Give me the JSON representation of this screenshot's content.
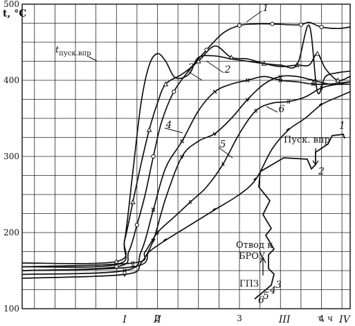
{
  "chart_data": {
    "type": "line",
    "title": "",
    "ylabel": "t, °C",
    "xlabel": "τ, ч",
    "ylim": [
      100,
      500
    ],
    "xlim": [
      0.35,
      4.35
    ],
    "grid": true,
    "y_ticks": [
      100,
      200,
      300,
      400,
      500
    ],
    "x_ticks": [
      2,
      3,
      4
    ],
    "phase_markers": [
      {
        "label": "I",
        "x": 1.6
      },
      {
        "label": "II",
        "x": 2.0
      },
      {
        "label": "III",
        "x": 3.55
      },
      {
        "label": "IV",
        "x": 4.35
      }
    ],
    "series": [
      {
        "name": "1",
        "marker": "circle",
        "points": [
          [
            0.35,
            150
          ],
          [
            1.5,
            155
          ],
          [
            1.65,
            175
          ],
          [
            1.75,
            210
          ],
          [
            1.85,
            250
          ],
          [
            1.95,
            300
          ],
          [
            2.05,
            345
          ],
          [
            2.2,
            385
          ],
          [
            2.4,
            415
          ],
          [
            2.6,
            440
          ],
          [
            2.8,
            462
          ],
          [
            3.0,
            472
          ],
          [
            3.2,
            474
          ],
          [
            3.4,
            474
          ],
          [
            3.6,
            473
          ],
          [
            3.75,
            473
          ],
          [
            3.85,
            476
          ],
          [
            4.0,
            470
          ],
          [
            4.2,
            468
          ],
          [
            4.35,
            470
          ]
        ]
      },
      {
        "name": "2",
        "marker": "triangle",
        "points": [
          [
            0.35,
            160
          ],
          [
            1.5,
            162
          ],
          [
            1.6,
            190
          ],
          [
            1.7,
            240
          ],
          [
            1.8,
            290
          ],
          [
            1.9,
            335
          ],
          [
            2.0,
            370
          ],
          [
            2.1,
            395
          ],
          [
            2.3,
            408
          ],
          [
            2.5,
            425
          ],
          [
            2.7,
            445
          ],
          [
            2.9,
            430
          ],
          [
            3.1,
            428
          ],
          [
            3.3,
            422
          ],
          [
            3.5,
            418
          ],
          [
            3.7,
            420
          ],
          [
            3.85,
            420
          ],
          [
            3.95,
            435
          ],
          [
            4.05,
            415
          ],
          [
            4.2,
            400
          ],
          [
            4.35,
            405
          ]
        ]
      },
      {
        "name": "3",
        "marker": "cross",
        "points": [
          [
            0.35,
            145
          ],
          [
            1.6,
            150
          ],
          [
            1.8,
            175
          ],
          [
            1.95,
            230
          ],
          [
            2.1,
            285
          ],
          [
            2.3,
            320
          ],
          [
            2.5,
            360
          ],
          [
            2.7,
            385
          ],
          [
            2.9,
            395
          ],
          [
            3.1,
            400
          ],
          [
            3.3,
            405
          ],
          [
            3.5,
            400
          ],
          [
            3.7,
            398
          ],
          [
            3.9,
            395
          ],
          [
            4.1,
            395
          ],
          [
            4.35,
            398
          ]
        ]
      },
      {
        "name": "4",
        "marker": "v",
        "points": [
          [
            0.35,
            140
          ],
          [
            1.6,
            145
          ],
          [
            1.8,
            160
          ],
          [
            1.95,
            190
          ],
          [
            2.1,
            245
          ],
          [
            2.3,
            300
          ],
          [
            2.5,
            320
          ],
          [
            2.7,
            330
          ],
          [
            2.9,
            350
          ],
          [
            3.1,
            375
          ],
          [
            3.3,
            395
          ],
          [
            3.5,
            405
          ],
          [
            3.7,
            405
          ],
          [
            3.9,
            400
          ],
          [
            4.1,
            395
          ],
          [
            4.35,
            395
          ]
        ]
      },
      {
        "name": "5",
        "marker": "tick",
        "points": [
          [
            0.35,
            150
          ],
          [
            1.7,
            155
          ],
          [
            1.9,
            175
          ],
          [
            2.1,
            190
          ],
          [
            2.4,
            210
          ],
          [
            2.7,
            230
          ],
          [
            3.0,
            250
          ],
          [
            3.2,
            270
          ],
          [
            3.4,
            310
          ],
          [
            3.6,
            335
          ],
          [
            3.8,
            350
          ],
          [
            4.0,
            368
          ],
          [
            4.2,
            378
          ],
          [
            4.35,
            385
          ]
        ]
      },
      {
        "name": "6",
        "marker": "bar",
        "points": [
          [
            0.35,
            155
          ],
          [
            1.7,
            160
          ],
          [
            1.85,
            175
          ],
          [
            2.0,
            200
          ],
          [
            2.2,
            220
          ],
          [
            2.4,
            240
          ],
          [
            2.6,
            260
          ],
          [
            2.8,
            290
          ],
          [
            3.0,
            330
          ],
          [
            3.2,
            360
          ],
          [
            3.4,
            370
          ],
          [
            3.6,
            372
          ],
          [
            3.8,
            378
          ],
          [
            4.0,
            390
          ],
          [
            4.2,
            395
          ],
          [
            4.35,
            398
          ]
        ]
      },
      {
        "name": "t пуск.впр",
        "marker": "none",
        "points": [
          [
            0.35,
            155
          ],
          [
            1.5,
            158
          ],
          [
            1.6,
            190
          ],
          [
            1.7,
            280
          ],
          [
            1.8,
            370
          ],
          [
            1.9,
            420
          ],
          [
            2.0,
            435
          ],
          [
            2.1,
            425
          ],
          [
            2.2,
            405
          ],
          [
            2.3,
            403
          ],
          [
            2.4,
            410
          ],
          [
            2.5,
            430
          ],
          [
            2.7,
            432
          ],
          [
            2.9,
            428
          ],
          [
            3.1,
            425
          ],
          [
            3.3,
            422
          ],
          [
            3.5,
            420
          ],
          [
            3.7,
            420
          ],
          [
            3.85,
            472
          ],
          [
            3.95,
            385
          ],
          [
            4.05,
            405
          ],
          [
            4.2,
            410
          ],
          [
            4.35,
            412
          ]
        ]
      }
    ],
    "annotations": {
      "curve_labels": [
        "1",
        "2",
        "3",
        "4",
        "5",
        "6"
      ],
      "tpusk_main": "t",
      "tpusk_sub": "пуск.впр",
      "pusk_vpr": "Пуск. впр",
      "otvod_line1": "Отвод к",
      "otvod_line2": "БРОУ",
      "gpz": "ГПЗ",
      "inset_nums": [
        "1",
        "2",
        "3",
        "4",
        "5",
        "6"
      ]
    }
  }
}
